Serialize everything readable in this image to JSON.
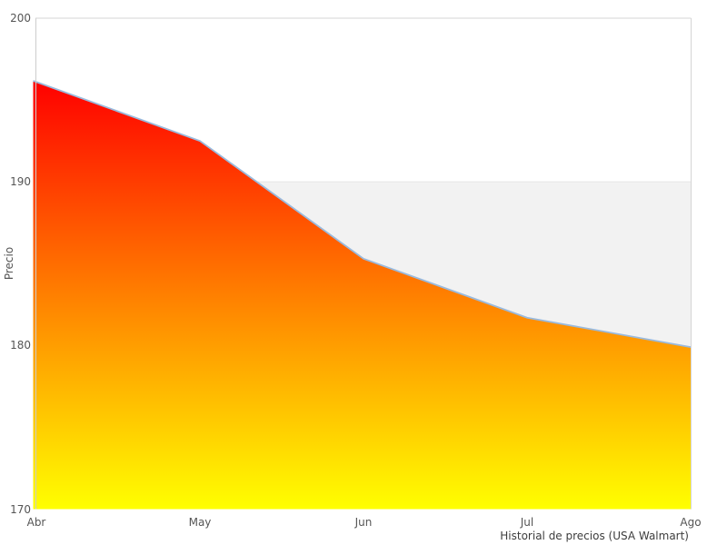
{
  "chart_data": {
    "type": "area",
    "caption": "Historial de precios (USA Walmart)",
    "ylabel": "Precio",
    "xlabel": "",
    "categories": [
      "Abr",
      "May",
      "Jun",
      "Jul",
      "Ago"
    ],
    "values": [
      196.1,
      192.5,
      185.3,
      181.7,
      179.9
    ],
    "ylim": [
      170,
      200
    ],
    "yticks": [
      200,
      190,
      180,
      170
    ],
    "grid": false,
    "legend": "none",
    "band": {
      "from": 170,
      "to": 190,
      "color": "#f2f2f2"
    },
    "colors": {
      "line": "#9abadd",
      "gradient_top": "#ff0000",
      "gradient_bottom": "#ffff00",
      "band": "#f2f2f2",
      "band_edge": "#e6e6e6",
      "border": "#d5d5d5",
      "axis_spine": "#cccccc",
      "axis_text": "#555555",
      "caption_text": "#3d3d3d",
      "background": "#ffffff"
    }
  }
}
